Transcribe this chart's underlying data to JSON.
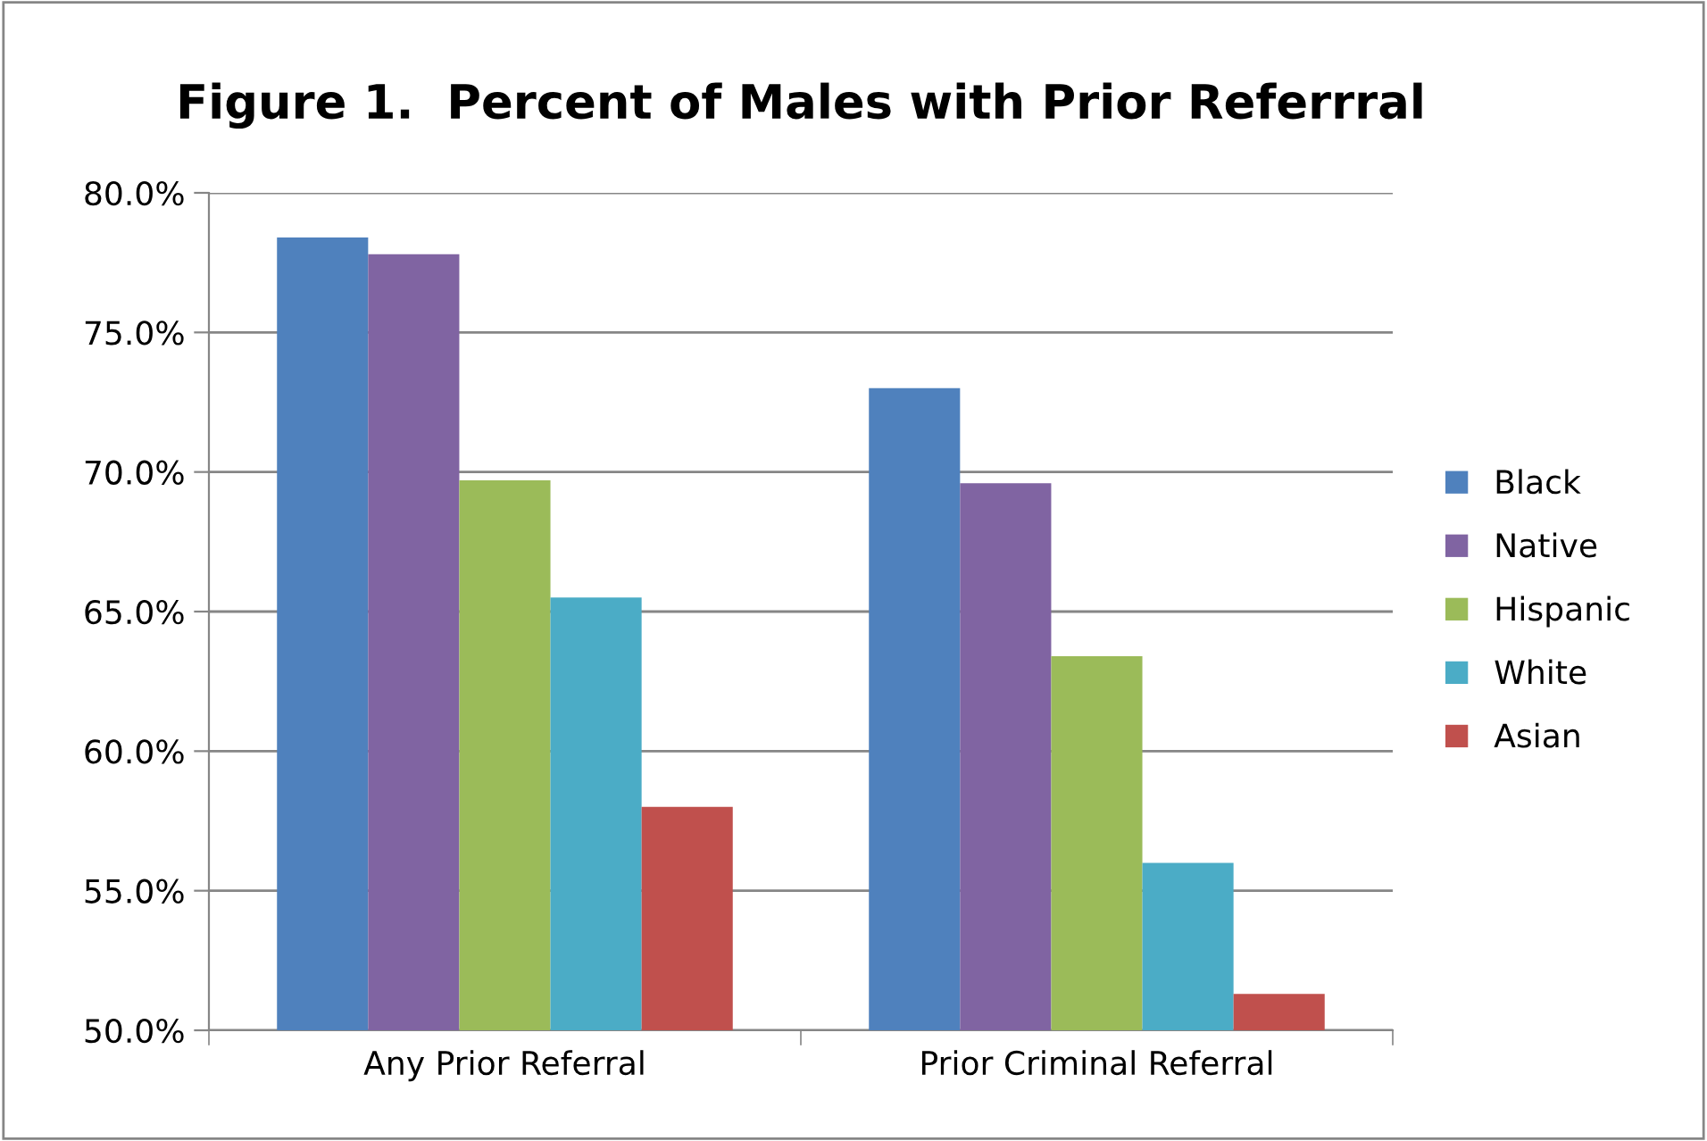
{
  "chart_data": {
    "type": "bar",
    "title": "Figure 1.  Percent of Males with Prior Referrral",
    "categories": [
      "Any Prior Referral",
      "Prior Criminal Referral"
    ],
    "series": [
      {
        "name": "Black",
        "color": "#4f81bd",
        "values": [
          78.4,
          73.0
        ]
      },
      {
        "name": "Native",
        "color": "#8064a2",
        "values": [
          77.8,
          69.6
        ]
      },
      {
        "name": "Hispanic",
        "color": "#9bbb59",
        "values": [
          69.7,
          63.4
        ]
      },
      {
        "name": "White",
        "color": "#4bacc6",
        "values": [
          65.5,
          56.0
        ]
      },
      {
        "name": "Asian",
        "color": "#c0504d",
        "values": [
          58.0,
          51.3
        ]
      }
    ],
    "ylim": [
      50,
      80
    ],
    "yticks": [
      {
        "value": 50,
        "label": "50.0%"
      },
      {
        "value": 55,
        "label": "55.0%"
      },
      {
        "value": 60,
        "label": "60.0%"
      },
      {
        "value": 65,
        "label": "65.0%"
      },
      {
        "value": 70,
        "label": "70.0%"
      },
      {
        "value": 75,
        "label": "75.0%"
      },
      {
        "value": 80,
        "label": "80.0%"
      }
    ],
    "grid": "y",
    "legend": "right"
  }
}
